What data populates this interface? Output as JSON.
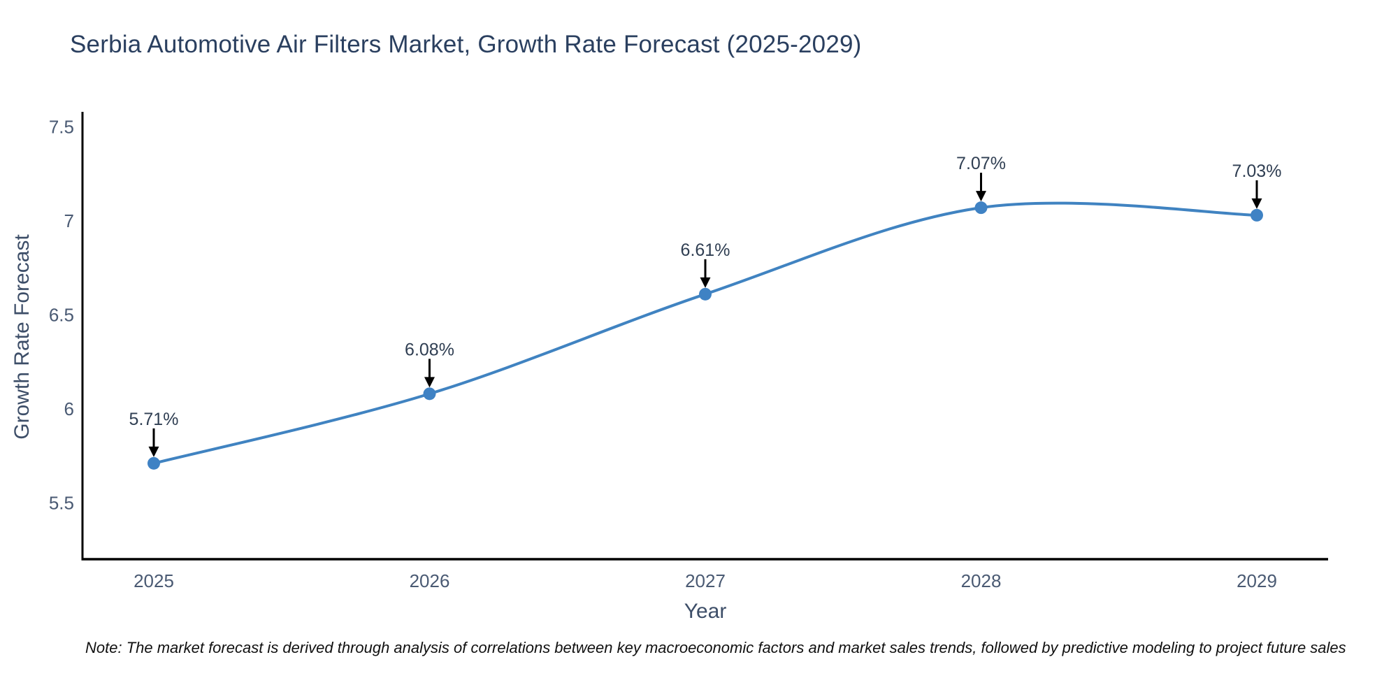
{
  "title": "Serbia Automotive Air Filters Market, Growth Rate Forecast (2025-2029)",
  "note": "Note: The market forecast is derived through analysis of correlations between key macroeconomic factors and market sales trends, followed by predictive modeling to project future sales",
  "colors": {
    "line": "#4083c1",
    "marker": "#3f82c4",
    "arrow": "#000000",
    "axis_spine": "#000000",
    "tick_text": "#4a5a73",
    "annotation_text": "#2f3e52",
    "title_text": "#2a3f5f",
    "background": "#ffffff"
  },
  "chart_data": {
    "type": "line",
    "title": "Serbia Automotive Air Filters Market, Growth Rate Forecast (2025-2029)",
    "xlabel": "Year",
    "ylabel": "Growth Rate Forecast",
    "x": [
      2025,
      2026,
      2027,
      2028,
      2029
    ],
    "values": [
      5.71,
      6.08,
      6.61,
      7.07,
      7.03
    ],
    "point_labels": [
      "5.71%",
      "6.08%",
      "6.61%",
      "7.07%",
      "7.03%"
    ],
    "xtick_labels": [
      "2025",
      "2026",
      "2027",
      "2028",
      "2029"
    ],
    "yticks": [
      5.5,
      6.0,
      6.5,
      7.0,
      7.5
    ],
    "ytick_labels": [
      "5.5",
      "6",
      "6.5",
      "7",
      "7.5"
    ],
    "ylim": [
      5.2,
      7.58
    ],
    "line_shape": "spline",
    "grid": false,
    "legend": "none",
    "annotation_style": "label-above-with-down-arrow"
  }
}
